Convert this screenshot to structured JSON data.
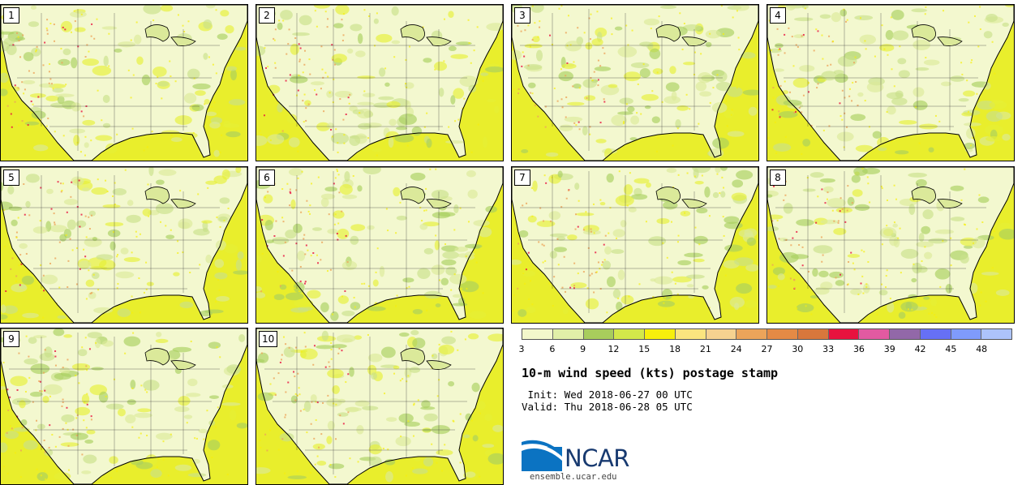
{
  "panels": [
    {
      "label": "1"
    },
    {
      "label": "2"
    },
    {
      "label": "3"
    },
    {
      "label": "4"
    },
    {
      "label": "5"
    },
    {
      "label": "6"
    },
    {
      "label": "7"
    },
    {
      "label": "8"
    },
    {
      "label": "9"
    },
    {
      "label": "10"
    }
  ],
  "colorbar": {
    "colors": [
      "#f3f7cb",
      "#e1efa8",
      "#a8cd5c",
      "#d3e84a",
      "#f7ef0b",
      "#fbe57f",
      "#f6d290",
      "#eca45a",
      "#e48a45",
      "#d8773c",
      "#e8123e",
      "#e25aa1",
      "#9268a8",
      "#6670f5",
      "#7f9bfc",
      "#adc3fb"
    ],
    "ticks": [
      "3",
      "6",
      "9",
      "12",
      "15",
      "18",
      "21",
      "24",
      "27",
      "30",
      "33",
      "36",
      "39",
      "42",
      "45",
      "48"
    ]
  },
  "title": "10-m wind speed (kts) postage stamp",
  "init": " Init: Wed 2018-06-27 00 UTC",
  "valid": "Valid: Thu 2018-06-28 05 UTC",
  "logo": {
    "name": "NCAR",
    "url": "ensemble.ucar.edu"
  }
}
